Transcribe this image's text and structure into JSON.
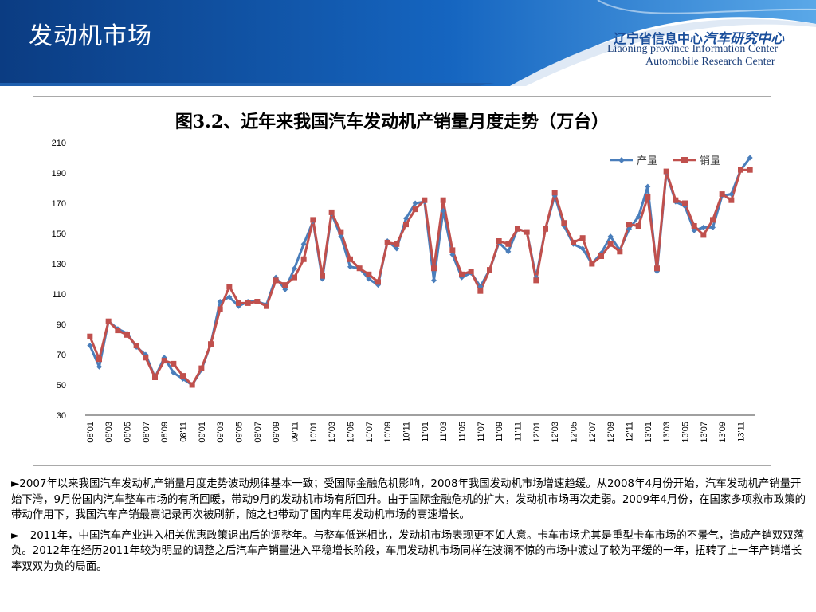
{
  "header": {
    "slide_title": "发动机市场",
    "org_name_cn_prefix": "辽宁省信息中心",
    "org_name_cn_suffix": "汽车研究中心",
    "org_name_en_line1": "Liaoning province Information Center",
    "org_name_en_line2": "Automobile Research Center",
    "colors": {
      "banner_dark": "#0d3f86",
      "banner_light": "#3f8fd9",
      "org_text": "#1b4f9b"
    }
  },
  "chart_data": {
    "type": "line",
    "title": "图3.2、近年来我国汽车发动机产销量月度走势（万台）",
    "ylim": [
      30,
      210
    ],
    "yticks": [
      30,
      50,
      70,
      90,
      110,
      130,
      150,
      170,
      190,
      210
    ],
    "categories": [
      "08'01",
      "08'02",
      "08'03",
      "08'04",
      "08'05",
      "08'06",
      "08'07",
      "08'08",
      "08'09",
      "08'10",
      "08'11",
      "08'12",
      "09'01",
      "09'02",
      "09'03",
      "09'04",
      "09'05",
      "09'06",
      "09'07",
      "09'08",
      "09'09",
      "09'10",
      "09'11",
      "09'12",
      "10'01",
      "10'02",
      "10'03",
      "10'04",
      "10'05",
      "10'06",
      "10'07",
      "10'08",
      "10'09",
      "10'10",
      "10'11",
      "10'12",
      "11'01",
      "11'02",
      "11'03",
      "11'04",
      "11'05",
      "11'06",
      "11'07",
      "11'08",
      "11'09",
      "11'10",
      "11'11",
      "11'12",
      "12'01",
      "12'02",
      "12'03",
      "12'04",
      "12'05",
      "12'06",
      "12'07",
      "12'08",
      "12'09",
      "12'10",
      "12'11",
      "12'12",
      "13'01",
      "13'02",
      "13'03",
      "13'04",
      "13'05",
      "13'06",
      "13'07",
      "13'08",
      "13'09",
      "13'10",
      "13'11",
      "13'12"
    ],
    "tick_labels": [
      "08'01",
      "08'03",
      "08'05",
      "08'07",
      "08'09",
      "08'11",
      "09'01",
      "09'03",
      "09'05",
      "09'07",
      "09'09",
      "09'11",
      "10'01",
      "10'03",
      "10'05",
      "10'07",
      "10'09",
      "10'11",
      "11'01",
      "11'03",
      "11'05",
      "11'07",
      "11'09",
      "11'11",
      "12'01",
      "12'03",
      "12'05",
      "12'07",
      "12'09",
      "12'11",
      "13'01",
      "13'03",
      "13'05",
      "13'07",
      "13'09",
      "13'11"
    ],
    "series": [
      {
        "name": "产量",
        "color": "#4a7ebb",
        "marker": "diamond",
        "values": [
          76,
          62,
          92,
          87,
          84,
          75,
          70,
          55,
          68,
          58,
          54,
          50,
          60,
          77,
          105,
          108,
          102,
          105,
          105,
          103,
          121,
          113,
          127,
          143,
          158,
          120,
          163,
          148,
          128,
          127,
          120,
          116,
          145,
          140,
          160,
          170,
          171,
          119,
          165,
          136,
          121,
          124,
          115,
          126,
          144,
          138,
          153,
          151,
          121,
          153,
          175,
          155,
          143,
          140,
          130,
          137,
          148,
          139,
          153,
          161,
          181,
          125,
          190,
          171,
          168,
          152,
          154,
          154,
          175,
          176,
          192,
          200
        ]
      },
      {
        "name": "销量",
        "color": "#c0504d",
        "marker": "square",
        "values": [
          82,
          67,
          92,
          86,
          83,
          76,
          68,
          55,
          66,
          64,
          56,
          50,
          61,
          77,
          100,
          115,
          104,
          104,
          105,
          102,
          119,
          116,
          121,
          133,
          159,
          122,
          164,
          151,
          133,
          127,
          123,
          118,
          144,
          143,
          156,
          166,
          172,
          127,
          172,
          139,
          123,
          125,
          112,
          126,
          145,
          143,
          153,
          151,
          119,
          153,
          177,
          157,
          144,
          147,
          130,
          135,
          143,
          138,
          156,
          155,
          174,
          127,
          191,
          172,
          170,
          155,
          149,
          159,
          176,
          172,
          192,
          192
        ]
      }
    ],
    "legend": "top-right",
    "grid": false
  },
  "body": {
    "para1": "►2007年以来我国汽车发动机产销量月度走势波动规律基本一致；受国际金融危机影响，2008年我国发动机市场增速趋缓。从2008年4月份开始，汽车发动机产销量开始下滑，9月份国内汽车整车市场的有所回暖，带动9月的发动机市场有所回升。由于国际金融危机的扩大，发动机市场再次走弱。2009年4月份，在国家多项救市政策的带动作用下，我国汽车产销最高记录再次被刷新，随之也带动了国内车用发动机市场的高速增长。",
    "para2": "►　2011年，中国汽车产业进入相关优惠政策退出后的调整年。与整车低迷相比，发动机市场表现更不如人意。卡车市场尤其是重型卡车市场的不景气，造成产销双双落负。2012年在经历2011年较为明显的调整之后汽车产销量进入平稳增长阶段，车用发动机市场同样在波澜不惊的市场中渡过了较为平缓的一年，扭转了上一年产销增长率双双为负的局面。"
  }
}
